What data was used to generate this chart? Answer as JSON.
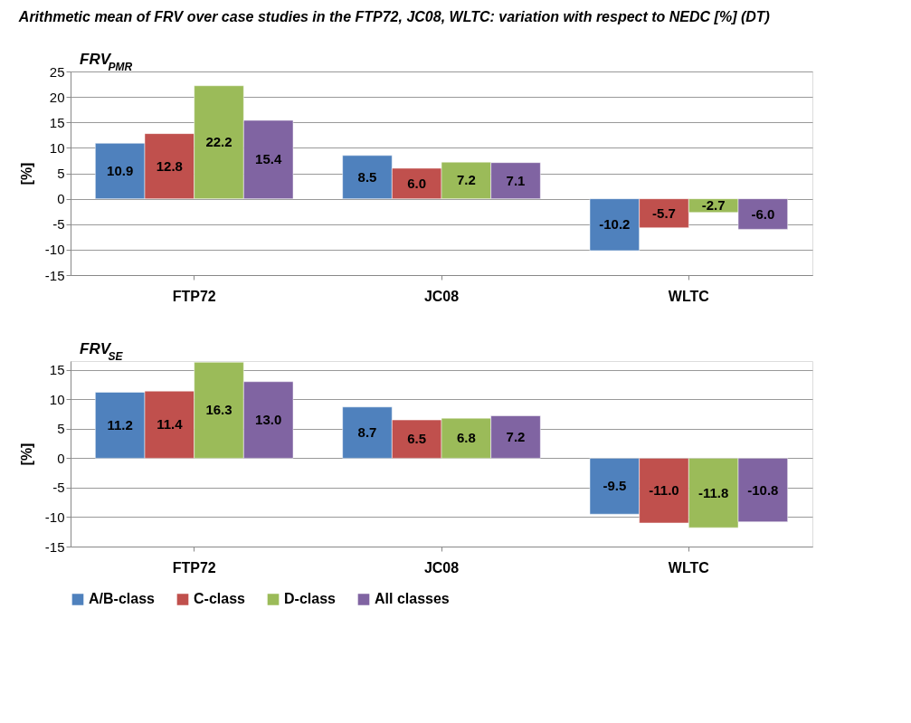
{
  "chart_data": [
    {
      "type": "bar",
      "title": "Arithmetic mean of FRV over case studies in the FTP72, JC08, WLTC: variation with respect to NEDC [%] (DT)",
      "subtitle": "FRV$_{PMR}$",
      "ylabel": "[%]",
      "categories": [
        "FTP72",
        "JC08",
        "WLTC"
      ],
      "ylim": [
        -15,
        25
      ],
      "yticks": [
        -15,
        -10,
        -5,
        0,
        5,
        10,
        15,
        20,
        25
      ],
      "grid": "y",
      "legend": "bottom",
      "series": [
        {
          "name": "A/B-class",
          "color": "#4f81bd",
          "values": [
            10.9,
            8.5,
            -10.2
          ],
          "value_labels": [
            "10.9",
            "8.5",
            "-10.2"
          ]
        },
        {
          "name": "C-class",
          "color": "#c0504d",
          "values": [
            12.8,
            6.0,
            -5.7
          ],
          "value_labels": [
            "12.8",
            "6.0",
            "-5.7"
          ]
        },
        {
          "name": "D-class",
          "color": "#9bbb59",
          "values": [
            22.2,
            7.2,
            -2.7
          ],
          "value_labels": [
            "22.2",
            "7.2",
            "-2.7"
          ]
        },
        {
          "name": "All classes",
          "color": "#8064a2",
          "values": [
            15.4,
            7.1,
            -6.0
          ],
          "value_labels": [
            "15.4",
            "7.1",
            "-6.0"
          ]
        }
      ]
    },
    {
      "type": "bar",
      "subtitle": "FRV$_{SE}$",
      "ylabel": "[%]",
      "categories": [
        "FTP72",
        "JC08",
        "WLTC"
      ],
      "ylim": [
        -15,
        16.5
      ],
      "yticks": [
        -15,
        -10,
        -5,
        0,
        5,
        10,
        15
      ],
      "grid": "y",
      "legend": "bottom",
      "series": [
        {
          "name": "A/B-class",
          "color": "#4f81bd",
          "values": [
            11.2,
            8.7,
            -9.5
          ],
          "value_labels": [
            "11.2",
            "8.7",
            "-9.5"
          ]
        },
        {
          "name": "C-class",
          "color": "#c0504d",
          "values": [
            11.4,
            6.5,
            -11.0
          ],
          "value_labels": [
            "11.4",
            "6.5",
            "-11.0"
          ]
        },
        {
          "name": "D-class",
          "color": "#9bbb59",
          "values": [
            16.3,
            6.8,
            -11.8
          ],
          "value_labels": [
            "16.3",
            "6.8",
            "-11.8"
          ]
        },
        {
          "name": "All classes",
          "color": "#8064a2",
          "values": [
            13.0,
            7.2,
            -10.8
          ],
          "value_labels": [
            "13.0",
            "7.2",
            "-10.8"
          ]
        }
      ]
    }
  ]
}
